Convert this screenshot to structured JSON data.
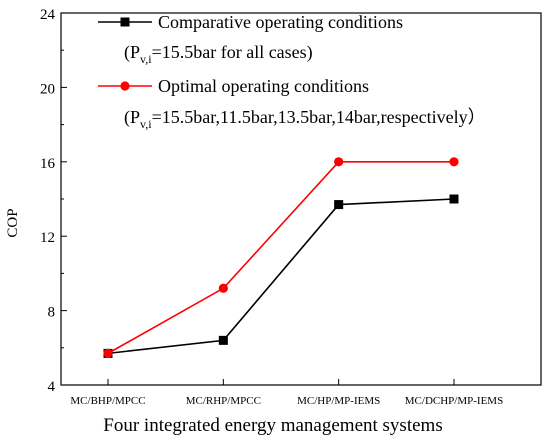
{
  "chart_data": {
    "type": "line",
    "categories": [
      "MC/BHP/MPCC",
      "MC/RHP/MPCC",
      "MC/HP/MP-IEMS",
      "MC/DCHP/MP-IEMS"
    ],
    "series": [
      {
        "name": "Comparative operating conditions",
        "note_main": "(P",
        "note_sub": "v,i",
        "note_rest": "=15.5bar for all cases)",
        "values": [
          5.7,
          6.4,
          13.7,
          14.0
        ],
        "color": "#000000",
        "marker": "square"
      },
      {
        "name": "Optimal operating conditions",
        "note_main": "(P",
        "note_sub": "v,i",
        "note_rest": "=15.5bar,11.5bar,13.5bar,14bar,respectively）",
        "values": [
          5.7,
          9.2,
          16.0,
          16.0
        ],
        "color": "#ff0000",
        "marker": "circle"
      }
    ],
    "title": "",
    "xlabel": "Four integrated energy management systems",
    "ylabel": "COP",
    "ylim": [
      4,
      24
    ],
    "yticks": [
      "4",
      "8",
      "12",
      "16",
      "20",
      "24"
    ],
    "grid": false,
    "legend_position": "top-left"
  }
}
